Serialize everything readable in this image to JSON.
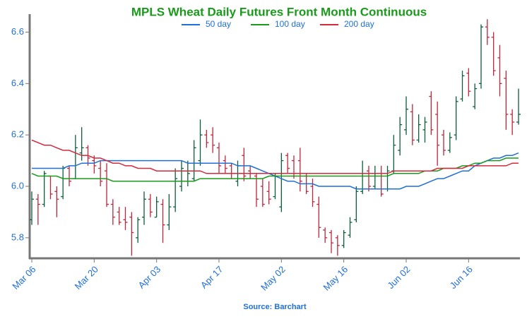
{
  "chart_data": {
    "type": "ohlc",
    "title": "MPLS Wheat Daily Futures Front Month Continuous",
    "source": "Source: Barchart",
    "categories": [
      "Mar 06",
      null,
      null,
      null,
      null,
      null,
      null,
      null,
      null,
      null,
      "Mar 20",
      null,
      null,
      null,
      null,
      null,
      null,
      null,
      null,
      null,
      "Apr 03",
      null,
      null,
      null,
      null,
      null,
      null,
      null,
      null,
      null,
      "Apr 17",
      null,
      null,
      null,
      null,
      null,
      null,
      null,
      null,
      null,
      "May 02",
      null,
      null,
      null,
      null,
      null,
      null,
      null,
      null,
      null,
      "May 16",
      null,
      null,
      null,
      null,
      null,
      null,
      null,
      null,
      null,
      "Jun 02",
      null,
      null,
      null,
      null,
      null,
      null,
      null,
      null,
      null,
      "Jun 16",
      null,
      null,
      null,
      null,
      null,
      null,
      null,
      null
    ],
    "up_color": "#0b5e3a",
    "down_color": "#c0263a",
    "ohlc": {
      "open": [
        5.87,
        5.95,
        5.93,
        6.04,
        5.98,
        5.96,
        6.07,
        6.03,
        6.13,
        6.15,
        6.1,
        6.07,
        6.06,
        5.93,
        5.9,
        5.87,
        5.88,
        5.8,
        5.88,
        5.95,
        5.88,
        5.93,
        5.85,
        5.92,
        6.0,
        6.02,
        6.03,
        6.1,
        6.2,
        6.2,
        6.15,
        6.1,
        6.08,
        6.02,
        6.12,
        6.06,
        6.04,
        6.0,
        5.98,
        5.96,
        5.92,
        6.12,
        6.1,
        6.1,
        6.04,
        6.0,
        5.93,
        5.83,
        5.82,
        5.8,
        5.77,
        5.81,
        5.87,
        5.98,
        6.06,
        6.0,
        6.05,
        5.99,
        6.06,
        6.14,
        6.22,
        6.29,
        6.18,
        6.22,
        6.35,
        6.28,
        6.2,
        6.14,
        6.2,
        6.34,
        6.44,
        6.31,
        6.4,
        6.62,
        6.58,
        6.5,
        6.42,
        6.28,
        6.25
      ],
      "high": [
        5.98,
        5.97,
        6.06,
        6.04,
        6.0,
        6.08,
        6.08,
        6.2,
        6.23,
        6.16,
        6.12,
        6.1,
        6.09,
        5.95,
        5.92,
        5.92,
        5.9,
        5.88,
        5.98,
        5.97,
        5.96,
        5.95,
        5.97,
        6.07,
        6.1,
        6.1,
        6.18,
        6.26,
        6.22,
        6.23,
        6.17,
        6.12,
        6.09,
        6.1,
        6.15,
        6.08,
        6.05,
        6.03,
        6.02,
        6.05,
        6.13,
        6.13,
        6.12,
        6.15,
        6.05,
        6.03,
        5.96,
        5.84,
        5.83,
        5.81,
        5.83,
        5.88,
        6.0,
        6.1,
        6.08,
        6.08,
        6.08,
        6.08,
        6.2,
        6.27,
        6.35,
        6.32,
        6.28,
        6.27,
        6.37,
        6.33,
        6.22,
        6.21,
        6.35,
        6.45,
        6.46,
        6.4,
        6.63,
        6.65,
        6.6,
        6.55,
        6.45,
        6.3,
        6.38
      ],
      "low": [
        5.85,
        5.85,
        5.92,
        5.95,
        5.88,
        5.95,
        6.0,
        6.03,
        6.1,
        6.08,
        6.05,
        6.0,
        5.92,
        5.85,
        5.85,
        5.83,
        5.73,
        5.78,
        5.85,
        5.88,
        5.88,
        5.78,
        5.83,
        5.9,
        5.98,
        6.0,
        6.02,
        6.08,
        6.15,
        6.13,
        6.05,
        6.05,
        6.03,
        6.0,
        6.02,
        6.03,
        5.92,
        5.92,
        5.93,
        5.95,
        5.9,
        6.05,
        6.03,
        5.98,
        5.97,
        5.92,
        5.8,
        5.78,
        5.74,
        5.73,
        5.76,
        5.8,
        5.86,
        5.97,
        5.98,
        5.99,
        5.96,
        5.98,
        6.05,
        6.12,
        6.2,
        6.16,
        6.17,
        6.17,
        6.2,
        6.08,
        6.12,
        6.13,
        6.18,
        6.33,
        6.35,
        6.3,
        6.38,
        6.55,
        6.43,
        6.35,
        6.22,
        6.2,
        6.24
      ],
      "close": [
        5.95,
        5.93,
        6.05,
        5.97,
        5.95,
        6.07,
        6.02,
        6.15,
        6.15,
        6.11,
        6.08,
        6.02,
        5.93,
        5.88,
        5.86,
        5.86,
        5.82,
        5.87,
        5.95,
        5.9,
        5.94,
        5.85,
        5.92,
        6.03,
        6.07,
        6.05,
        6.15,
        6.2,
        6.17,
        6.16,
        6.08,
        6.07,
        6.05,
        6.08,
        6.04,
        6.05,
        5.95,
        5.93,
        5.95,
        6.04,
        6.1,
        6.07,
        6.05,
        6.02,
        5.98,
        5.94,
        5.84,
        5.8,
        5.78,
        5.77,
        5.82,
        5.86,
        5.98,
        6.05,
        6.0,
        6.05,
        5.97,
        6.06,
        6.16,
        6.24,
        6.3,
        6.18,
        6.24,
        6.25,
        6.22,
        6.16,
        6.14,
        6.19,
        6.33,
        6.43,
        6.37,
        6.38,
        6.62,
        6.58,
        6.45,
        6.4,
        6.28,
        6.25,
        6.28
      ]
    },
    "series": [
      {
        "name": "50 day",
        "color": "#1f6fd9",
        "values": [
          6.07,
          6.07,
          6.07,
          6.07,
          6.07,
          6.07,
          6.08,
          6.08,
          6.09,
          6.09,
          6.09,
          6.1,
          6.1,
          6.1,
          6.1,
          6.1,
          6.1,
          6.1,
          6.1,
          6.1,
          6.1,
          6.1,
          6.1,
          6.1,
          6.1,
          6.09,
          6.09,
          6.09,
          6.09,
          6.09,
          6.09,
          6.09,
          6.09,
          6.08,
          6.08,
          6.08,
          6.07,
          6.06,
          6.05,
          6.04,
          6.03,
          6.02,
          6.02,
          6.01,
          6.01,
          6.01,
          6.0,
          6.0,
          6.0,
          6.0,
          6.0,
          6.0,
          5.99,
          5.99,
          5.99,
          5.99,
          5.99,
          5.99,
          5.99,
          5.99,
          6.0,
          6.0,
          6.0,
          6.01,
          6.02,
          6.03,
          6.03,
          6.04,
          6.05,
          6.06,
          6.06,
          6.08,
          6.09,
          6.1,
          6.11,
          6.11,
          6.12,
          6.12,
          6.13
        ]
      },
      {
        "name": "100 day",
        "color": "#1a9a1a",
        "values": [
          6.05,
          6.04,
          6.04,
          6.04,
          6.04,
          6.03,
          6.03,
          6.03,
          6.03,
          6.03,
          6.03,
          6.03,
          6.03,
          6.02,
          6.02,
          6.02,
          6.02,
          6.02,
          6.02,
          6.02,
          6.02,
          6.02,
          6.02,
          6.02,
          6.02,
          6.02,
          6.02,
          6.03,
          6.03,
          6.03,
          6.03,
          6.03,
          6.03,
          6.03,
          6.03,
          6.03,
          6.03,
          6.03,
          6.04,
          6.04,
          6.04,
          6.04,
          6.04,
          6.04,
          6.04,
          6.04,
          6.04,
          6.04,
          6.04,
          6.04,
          6.04,
          6.04,
          6.04,
          6.04,
          6.04,
          6.04,
          6.04,
          6.04,
          6.05,
          6.05,
          6.05,
          6.05,
          6.05,
          6.06,
          6.06,
          6.06,
          6.07,
          6.07,
          6.07,
          6.08,
          6.08,
          6.09,
          6.09,
          6.1,
          6.1,
          6.1,
          6.11,
          6.11,
          6.11
        ]
      },
      {
        "name": "200 day",
        "color": "#d42a3c",
        "values": [
          6.18,
          6.17,
          6.16,
          6.16,
          6.15,
          6.14,
          6.14,
          6.13,
          6.12,
          6.12,
          6.11,
          6.11,
          6.1,
          6.09,
          6.09,
          6.08,
          6.08,
          6.07,
          6.07,
          6.07,
          6.06,
          6.06,
          6.06,
          6.06,
          6.06,
          6.06,
          6.06,
          6.06,
          6.05,
          6.05,
          6.05,
          6.05,
          6.05,
          6.05,
          6.05,
          6.05,
          6.05,
          6.05,
          6.05,
          6.05,
          6.05,
          6.05,
          6.05,
          6.05,
          6.05,
          6.05,
          6.05,
          6.05,
          6.05,
          6.05,
          6.05,
          6.05,
          6.05,
          6.05,
          6.05,
          6.05,
          6.05,
          6.05,
          6.06,
          6.06,
          6.06,
          6.06,
          6.06,
          6.06,
          6.06,
          6.07,
          6.07,
          6.07,
          6.07,
          6.07,
          6.08,
          6.08,
          6.08,
          6.08,
          6.08,
          6.08,
          6.08,
          6.09,
          6.09
        ]
      }
    ],
    "ylim": [
      5.72,
      6.67
    ],
    "yticks": [
      5.8,
      {
        "value": 6,
        "label": "6.0"
      },
      6.2,
      6.4,
      6.6
    ],
    "title_color": "#1a9a1a",
    "label_color": "#1f6fd9"
  }
}
